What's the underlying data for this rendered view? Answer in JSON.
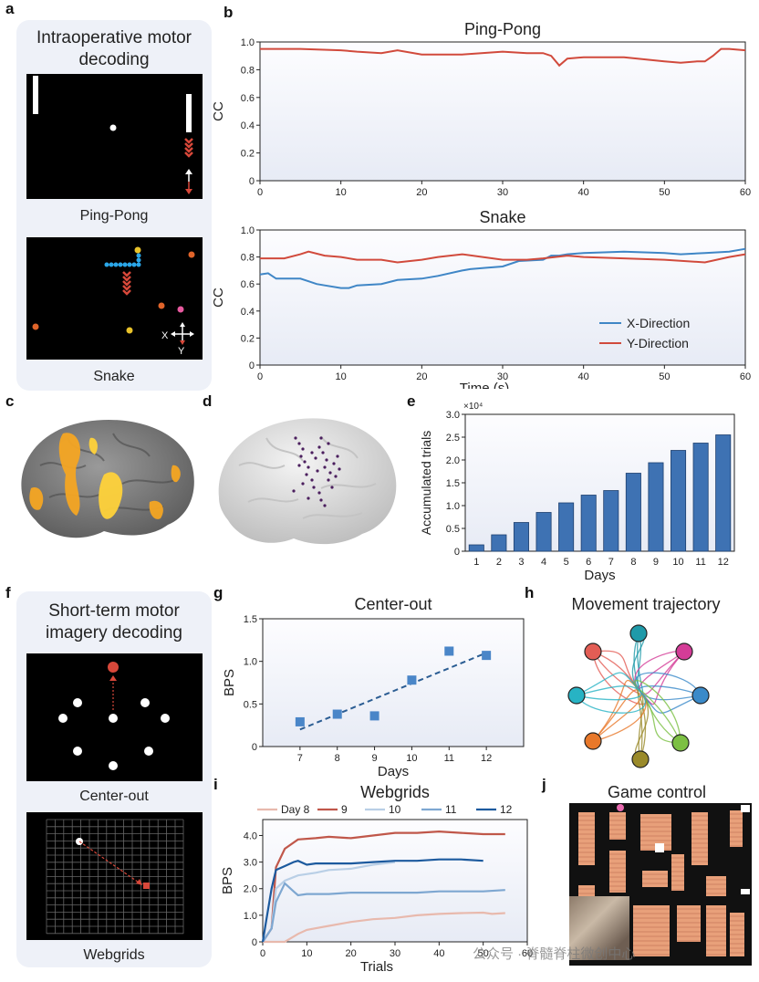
{
  "figure": {
    "panel_labels": {
      "a": "a",
      "b": "b",
      "c": "c",
      "d": "d",
      "e": "e",
      "f": "f",
      "g": "g",
      "h": "h",
      "i": "i",
      "j": "j"
    },
    "panel_a": {
      "title": "Intraoperative motor decoding",
      "caption_1": "Ping-Pong",
      "caption_2": "Snake",
      "axis_x": "X",
      "axis_y": "Y"
    },
    "panel_f": {
      "title": "Short-term motor imagery decoding",
      "caption_1": "Center-out",
      "caption_2": "Webgrids"
    },
    "panel_h": {
      "title": "Movement trajectory",
      "target_colors": [
        "#e35d55",
        "#1f9aa9",
        "#d43c97",
        "#3a8ac9",
        "#7cc043",
        "#9a8a2a",
        "#e8782a",
        "#27b3c4"
      ]
    },
    "panel_j": {
      "title": "Game control"
    },
    "watermark": "公众号 · 脊髓脊柱微创中心",
    "colors": {
      "x_direction": "#3f86c6",
      "y_direction": "#d14a3c",
      "bar": "#3e72b3"
    }
  },
  "chart_data": [
    {
      "id": "b-top",
      "type": "line",
      "title": "Ping-Pong",
      "xlabel": "",
      "ylabel": "CC",
      "xlim": [
        0,
        60
      ],
      "ylim": [
        0,
        1.0
      ],
      "xticks": [
        "0",
        "10",
        "20",
        "30",
        "40",
        "50",
        "60"
      ],
      "yticks": [
        "0",
        "0.2",
        "0.4",
        "0.6",
        "0.8",
        "1.0"
      ],
      "series": [
        {
          "name": "Y-Direction",
          "x": [
            0,
            5,
            10,
            12,
            15,
            17,
            20,
            25,
            30,
            33,
            35,
            36,
            37,
            38,
            40,
            45,
            50,
            52,
            54,
            55,
            56,
            57,
            58,
            60
          ],
          "values": [
            0.95,
            0.95,
            0.94,
            0.93,
            0.92,
            0.94,
            0.91,
            0.91,
            0.93,
            0.92,
            0.92,
            0.9,
            0.83,
            0.88,
            0.89,
            0.89,
            0.86,
            0.85,
            0.86,
            0.86,
            0.9,
            0.95,
            0.95,
            0.94
          ]
        }
      ]
    },
    {
      "id": "b-bottom",
      "type": "line",
      "title": "Snake",
      "xlabel": "Time (s)",
      "ylabel": "CC",
      "xlim": [
        0,
        60
      ],
      "ylim": [
        0,
        1.0
      ],
      "xticks": [
        "0",
        "10",
        "20",
        "30",
        "40",
        "50",
        "60"
      ],
      "yticks": [
        "0",
        "0.2",
        "0.4",
        "0.6",
        "0.8",
        "1.0"
      ],
      "legend": [
        "X-Direction",
        "Y-Direction"
      ],
      "series": [
        {
          "name": "X-Direction",
          "x": [
            0,
            1,
            2,
            5,
            6,
            7,
            8,
            10,
            11,
            12,
            15,
            17,
            20,
            22,
            25,
            26,
            28,
            30,
            32,
            35,
            36,
            37,
            38,
            40,
            45,
            50,
            52,
            55,
            58,
            60
          ],
          "values": [
            0.67,
            0.68,
            0.64,
            0.64,
            0.62,
            0.6,
            0.59,
            0.57,
            0.57,
            0.59,
            0.6,
            0.63,
            0.64,
            0.66,
            0.7,
            0.71,
            0.72,
            0.73,
            0.77,
            0.78,
            0.81,
            0.81,
            0.82,
            0.83,
            0.84,
            0.83,
            0.82,
            0.83,
            0.84,
            0.86
          ]
        },
        {
          "name": "Y-Direction",
          "x": [
            0,
            3,
            5,
            6,
            8,
            10,
            12,
            15,
            17,
            20,
            22,
            25,
            30,
            33,
            35,
            38,
            40,
            45,
            50,
            55,
            58,
            60
          ],
          "values": [
            0.79,
            0.79,
            0.82,
            0.84,
            0.81,
            0.8,
            0.78,
            0.78,
            0.76,
            0.78,
            0.8,
            0.82,
            0.78,
            0.78,
            0.79,
            0.81,
            0.8,
            0.79,
            0.78,
            0.76,
            0.8,
            0.82
          ]
        }
      ]
    },
    {
      "id": "e",
      "type": "bar",
      "xlabel": "Days",
      "ylabel": "Accumulated trials",
      "multiplier": "×10⁴",
      "ylim": [
        0,
        3.0
      ],
      "yticks": [
        "0",
        "0.5",
        "1.0",
        "1.5",
        "2.0",
        "2.5",
        "3.0"
      ],
      "categories": [
        "1",
        "2",
        "3",
        "4",
        "5",
        "6",
        "7",
        "8",
        "9",
        "10",
        "11",
        "12"
      ],
      "values": [
        0.14,
        0.36,
        0.63,
        0.85,
        1.06,
        1.23,
        1.33,
        1.71,
        1.94,
        2.21,
        2.37,
        2.55
      ]
    },
    {
      "id": "g",
      "type": "scatter",
      "title": "Center-out",
      "xlabel": "Days",
      "ylabel": "BPS",
      "xlim": [
        6,
        13
      ],
      "ylim": [
        0,
        1.5
      ],
      "xticks": [
        "7",
        "8",
        "9",
        "10",
        "11",
        "12"
      ],
      "yticks": [
        "0",
        "0.5",
        "1.0",
        "1.5"
      ],
      "x": [
        7,
        8,
        9,
        10,
        11,
        12
      ],
      "values": [
        0.29,
        0.38,
        0.36,
        0.78,
        1.12,
        1.07
      ],
      "trend": {
        "x": [
          7,
          12
        ],
        "values": [
          0.2,
          1.1
        ]
      }
    },
    {
      "id": "i",
      "type": "line",
      "title": "Webgrids",
      "xlabel": "Trials",
      "ylabel": "BPS",
      "xlim": [
        0,
        60
      ],
      "ylim": [
        0,
        4.6
      ],
      "xticks": [
        "0",
        "10",
        "20",
        "30",
        "40",
        "50",
        "60"
      ],
      "yticks": [
        "0",
        "1.0",
        "2.0",
        "3.0",
        "4.0"
      ],
      "series": [
        {
          "name": "Day 8",
          "color": "#e8b9ad",
          "x": [
            0,
            5,
            8,
            10,
            15,
            20,
            25,
            30,
            35,
            40,
            45,
            50,
            52,
            55
          ],
          "values": [
            0,
            0,
            0.3,
            0.45,
            0.6,
            0.75,
            0.85,
            0.9,
            1.0,
            1.05,
            1.08,
            1.1,
            1.05,
            1.08
          ]
        },
        {
          "name": "9",
          "color": "#c0574a",
          "x": [
            0,
            2,
            3,
            5,
            8,
            12,
            15,
            20,
            25,
            30,
            35,
            40,
            45,
            50,
            55
          ],
          "values": [
            0,
            0.5,
            2.8,
            3.5,
            3.85,
            3.9,
            3.95,
            3.9,
            4.0,
            4.1,
            4.1,
            4.15,
            4.1,
            4.05,
            4.05
          ]
        },
        {
          "name": "10",
          "color": "#b9cfe6",
          "x": [
            0,
            2,
            3,
            5,
            8,
            12,
            15,
            20,
            25,
            30
          ],
          "values": [
            0,
            0.5,
            2.0,
            2.3,
            2.5,
            2.6,
            2.7,
            2.75,
            2.9,
            3.0
          ]
        },
        {
          "name": "11",
          "color": "#7ea7d1",
          "x": [
            0,
            2,
            3,
            5,
            7,
            8,
            10,
            12,
            15,
            20,
            25,
            30,
            35,
            40,
            45,
            50,
            55
          ],
          "values": [
            0,
            0.5,
            1.5,
            2.2,
            1.9,
            1.75,
            1.8,
            1.8,
            1.8,
            1.85,
            1.85,
            1.85,
            1.85,
            1.9,
            1.9,
            1.9,
            1.95
          ]
        },
        {
          "name": "12",
          "color": "#1c5a9e",
          "x": [
            0,
            1,
            2,
            3,
            5,
            7,
            8,
            10,
            12,
            15,
            20,
            25,
            30,
            35,
            40,
            45,
            50
          ],
          "values": [
            0,
            1.0,
            2.0,
            2.7,
            2.85,
            3.0,
            3.05,
            2.9,
            2.95,
            2.95,
            2.95,
            3.0,
            3.05,
            3.05,
            3.1,
            3.1,
            3.05
          ]
        }
      ]
    }
  ]
}
